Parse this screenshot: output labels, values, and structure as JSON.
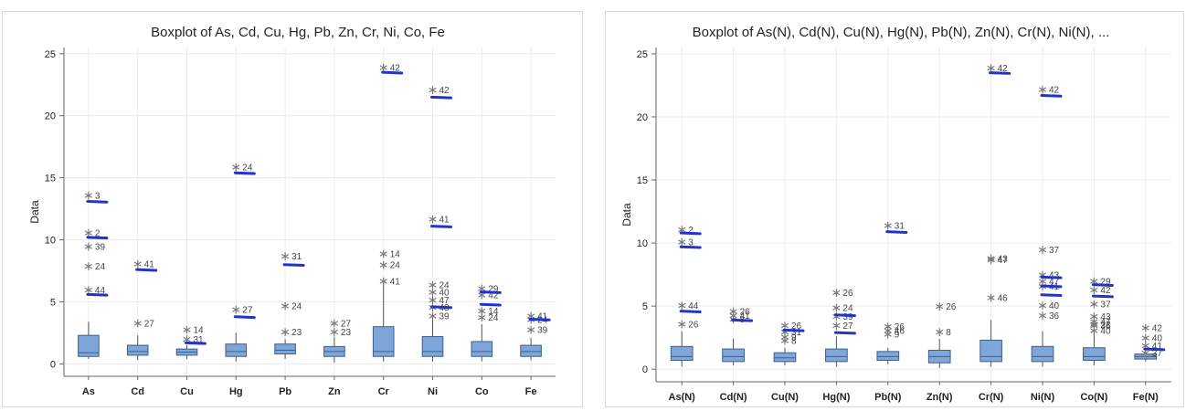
{
  "chart_data": [
    {
      "type": "box",
      "title": "Boxplot of As, Cd, Cu, Hg, Pb, Zn, Cr, Ni, Co, Fe",
      "ylabel": "Data",
      "xlabel": "",
      "ylim": [
        -1,
        25.5
      ],
      "yticks": [
        0,
        5,
        10,
        15,
        20,
        25
      ],
      "grid": true,
      "categories": [
        "As",
        "Cd",
        "Cu",
        "Hg",
        "Pb",
        "Zn",
        "Cr",
        "Ni",
        "Co",
        "Fe"
      ],
      "boxes": [
        {
          "category": "As",
          "whisker_low": 0.4,
          "q1": 0.6,
          "median": 0.9,
          "q3": 2.3,
          "whisker_high": 3.4
        },
        {
          "category": "Cd",
          "whisker_low": 0.3,
          "q1": 0.7,
          "median": 1.0,
          "q3": 1.5,
          "whisker_high": 2.3
        },
        {
          "category": "Cu",
          "whisker_low": 0.4,
          "q1": 0.7,
          "median": 0.95,
          "q3": 1.2,
          "whisker_high": 1.5
        },
        {
          "category": "Hg",
          "whisker_low": 0.2,
          "q1": 0.6,
          "median": 1.0,
          "q3": 1.6,
          "whisker_high": 2.5
        },
        {
          "category": "Pb",
          "whisker_low": 0.4,
          "q1": 0.8,
          "median": 1.1,
          "q3": 1.6,
          "whisker_high": 2.0
        },
        {
          "category": "Zn",
          "whisker_low": 0.1,
          "q1": 0.6,
          "median": 1.0,
          "q3": 1.4,
          "whisker_high": 2.2
        },
        {
          "category": "Cr",
          "whisker_low": 0.2,
          "q1": 0.6,
          "median": 1.0,
          "q3": 3.0,
          "whisker_high": 6.5
        },
        {
          "category": "Ni",
          "whisker_low": 0.2,
          "q1": 0.6,
          "median": 1.0,
          "q3": 2.2,
          "whisker_high": 4.0
        },
        {
          "category": "Co",
          "whisker_low": 0.2,
          "q1": 0.6,
          "median": 1.0,
          "q3": 1.8,
          "whisker_high": 3.2
        },
        {
          "category": "Fe",
          "whisker_low": 0.3,
          "q1": 0.6,
          "median": 1.0,
          "q3": 1.5,
          "whisker_high": 2.1
        }
      ],
      "outliers": [
        {
          "category": "As",
          "value": 13.6,
          "label": "3"
        },
        {
          "category": "As",
          "value": 10.6,
          "label": "2"
        },
        {
          "category": "As",
          "value": 9.5,
          "label": "39"
        },
        {
          "category": "As",
          "value": 7.9,
          "label": "24"
        },
        {
          "category": "As",
          "value": 6.0,
          "label": "44"
        },
        {
          "category": "Cd",
          "value": 8.1,
          "label": "41"
        },
        {
          "category": "Cd",
          "value": 3.3,
          "label": "27"
        },
        {
          "category": "Cu",
          "value": 2.8,
          "label": "14"
        },
        {
          "category": "Cu",
          "value": 2.0,
          "label": "31"
        },
        {
          "category": "Hg",
          "value": 15.9,
          "label": "24"
        },
        {
          "category": "Hg",
          "value": 4.4,
          "label": "27"
        },
        {
          "category": "Pb",
          "value": 8.7,
          "label": "31"
        },
        {
          "category": "Pb",
          "value": 4.7,
          "label": "24"
        },
        {
          "category": "Pb",
          "value": 2.6,
          "label": "23"
        },
        {
          "category": "Zn",
          "value": 3.3,
          "label": "27"
        },
        {
          "category": "Zn",
          "value": 2.6,
          "label": "23"
        },
        {
          "category": "Cr",
          "value": 23.9,
          "label": "42"
        },
        {
          "category": "Cr",
          "value": 8.9,
          "label": "14"
        },
        {
          "category": "Cr",
          "value": 8.0,
          "label": "24"
        },
        {
          "category": "Cr",
          "value": 6.7,
          "label": "41"
        },
        {
          "category": "Ni",
          "value": 22.1,
          "label": "42"
        },
        {
          "category": "Ni",
          "value": 11.7,
          "label": "41"
        },
        {
          "category": "Ni",
          "value": 6.4,
          "label": "24"
        },
        {
          "category": "Ni",
          "value": 5.8,
          "label": "40"
        },
        {
          "category": "Ni",
          "value": 5.2,
          "label": "47"
        },
        {
          "category": "Ni",
          "value": 4.6,
          "label": "43"
        },
        {
          "category": "Ni",
          "value": 3.9,
          "label": "39"
        },
        {
          "category": "Co",
          "value": 6.1,
          "label": "29"
        },
        {
          "category": "Co",
          "value": 5.6,
          "label": "42"
        },
        {
          "category": "Co",
          "value": 4.3,
          "label": "14"
        },
        {
          "category": "Co",
          "value": 3.8,
          "label": "24"
        },
        {
          "category": "Fe",
          "value": 3.9,
          "label": "41"
        },
        {
          "category": "Fe",
          "value": 3.6,
          "label": "24"
        },
        {
          "category": "Fe",
          "value": 2.8,
          "label": "39"
        }
      ],
      "annotation_marks": [
        {
          "category": "As",
          "value": 13.1
        },
        {
          "category": "As",
          "value": 10.2
        },
        {
          "category": "As",
          "value": 5.6
        },
        {
          "category": "Cd",
          "value": 7.6
        },
        {
          "category": "Cu",
          "value": 1.7
        },
        {
          "category": "Hg",
          "value": 15.4
        },
        {
          "category": "Hg",
          "value": 3.8
        },
        {
          "category": "Pb",
          "value": 8.0
        },
        {
          "category": "Cr",
          "value": 23.5
        },
        {
          "category": "Ni",
          "value": 21.5
        },
        {
          "category": "Ni",
          "value": 11.1
        },
        {
          "category": "Ni",
          "value": 4.6
        },
        {
          "category": "Co",
          "value": 5.8
        },
        {
          "category": "Co",
          "value": 4.8
        },
        {
          "category": "Fe",
          "value": 3.6
        }
      ]
    },
    {
      "type": "box",
      "title": "Boxplot of As(N), Cd(N), Cu(N), Hg(N), Pb(N), Zn(N), Cr(N), Ni(N), ...",
      "ylabel": "Data",
      "xlabel": "",
      "ylim": [
        -1,
        25.5
      ],
      "yticks": [
        0,
        5,
        10,
        15,
        20,
        25
      ],
      "grid": true,
      "categories": [
        "As(N)",
        "Cd(N)",
        "Cu(N)",
        "Hg(N)",
        "Pb(N)",
        "Zn(N)",
        "Cr(N)",
        "Ni(N)",
        "Co(N)",
        "Fe(N)"
      ],
      "boxes": [
        {
          "category": "As(N)",
          "whisker_low": 0.2,
          "q1": 0.7,
          "median": 1.0,
          "q3": 1.8,
          "whisker_high": 3.0
        },
        {
          "category": "Cd(N)",
          "whisker_low": 0.3,
          "q1": 0.6,
          "median": 1.0,
          "q3": 1.6,
          "whisker_high": 2.4
        },
        {
          "category": "Cu(N)",
          "whisker_low": 0.3,
          "q1": 0.6,
          "median": 0.9,
          "q3": 1.3,
          "whisker_high": 1.7
        },
        {
          "category": "Hg(N)",
          "whisker_low": 0.2,
          "q1": 0.6,
          "median": 1.0,
          "q3": 1.6,
          "whisker_high": 2.6
        },
        {
          "category": "Pb(N)",
          "whisker_low": 0.4,
          "q1": 0.7,
          "median": 1.0,
          "q3": 1.4,
          "whisker_high": 1.7
        },
        {
          "category": "Zn(N)",
          "whisker_low": 0.1,
          "q1": 0.5,
          "median": 1.0,
          "q3": 1.5,
          "whisker_high": 2.4
        },
        {
          "category": "Cr(N)",
          "whisker_low": 0.2,
          "q1": 0.6,
          "median": 1.0,
          "q3": 2.3,
          "whisker_high": 3.9
        },
        {
          "category": "Ni(N)",
          "whisker_low": 0.2,
          "q1": 0.6,
          "median": 1.0,
          "q3": 1.8,
          "whisker_high": 3.0
        },
        {
          "category": "Co(N)",
          "whisker_low": 0.3,
          "q1": 0.7,
          "median": 1.0,
          "q3": 1.7,
          "whisker_high": 2.8
        },
        {
          "category": "Fe(N)",
          "whisker_low": 0.6,
          "q1": 0.8,
          "median": 1.0,
          "q3": 1.2,
          "whisker_high": 1.4
        }
      ],
      "outliers": [
        {
          "category": "As(N)",
          "value": 11.1,
          "label": "2"
        },
        {
          "category": "As(N)",
          "value": 10.1,
          "label": "3"
        },
        {
          "category": "As(N)",
          "value": 5.1,
          "label": "44"
        },
        {
          "category": "As(N)",
          "value": 3.6,
          "label": "26"
        },
        {
          "category": "Cd(N)",
          "value": 4.6,
          "label": "26"
        },
        {
          "category": "Cd(N)",
          "value": 4.3,
          "label": "41"
        },
        {
          "category": "Cd(N)",
          "value": 4.0,
          "label": "8"
        },
        {
          "category": "Cu(N)",
          "value": 3.5,
          "label": "26"
        },
        {
          "category": "Cu(N)",
          "value": 3.0,
          "label": "31"
        },
        {
          "category": "Cu(N)",
          "value": 2.6,
          "label": "9"
        },
        {
          "category": "Cu(N)",
          "value": 2.3,
          "label": "8"
        },
        {
          "category": "Hg(N)",
          "value": 6.1,
          "label": "26"
        },
        {
          "category": "Hg(N)",
          "value": 4.9,
          "label": "24"
        },
        {
          "category": "Hg(N)",
          "value": 4.2,
          "label": "39"
        },
        {
          "category": "Hg(N)",
          "value": 3.5,
          "label": "27"
        },
        {
          "category": "Pb(N)",
          "value": 11.4,
          "label": "31"
        },
        {
          "category": "Pb(N)",
          "value": 3.4,
          "label": "26"
        },
        {
          "category": "Pb(N)",
          "value": 3.1,
          "label": "46"
        },
        {
          "category": "Pb(N)",
          "value": 2.8,
          "label": "9"
        },
        {
          "category": "Zn(N)",
          "value": 5.0,
          "label": "26"
        },
        {
          "category": "Zn(N)",
          "value": 3.0,
          "label": "8"
        },
        {
          "category": "Cr(N)",
          "value": 23.9,
          "label": "42"
        },
        {
          "category": "Cr(N)",
          "value": 8.8,
          "label": "43"
        },
        {
          "category": "Cr(N)",
          "value": 8.7,
          "label": "47"
        },
        {
          "category": "Cr(N)",
          "value": 5.7,
          "label": "46"
        },
        {
          "category": "Ni(N)",
          "value": 22.2,
          "label": "42"
        },
        {
          "category": "Ni(N)",
          "value": 9.5,
          "label": "37"
        },
        {
          "category": "Ni(N)",
          "value": 7.5,
          "label": "43"
        },
        {
          "category": "Ni(N)",
          "value": 7.0,
          "label": "47"
        },
        {
          "category": "Ni(N)",
          "value": 6.6,
          "label": "41"
        },
        {
          "category": "Ni(N)",
          "value": 5.1,
          "label": "40"
        },
        {
          "category": "Ni(N)",
          "value": 4.3,
          "label": "36"
        },
        {
          "category": "Co(N)",
          "value": 7.0,
          "label": "29"
        },
        {
          "category": "Co(N)",
          "value": 6.3,
          "label": "42"
        },
        {
          "category": "Co(N)",
          "value": 5.2,
          "label": "37"
        },
        {
          "category": "Co(N)",
          "value": 4.2,
          "label": "43"
        },
        {
          "category": "Co(N)",
          "value": 3.8,
          "label": "47"
        },
        {
          "category": "Co(N)",
          "value": 3.6,
          "label": "22"
        },
        {
          "category": "Co(N)",
          "value": 3.5,
          "label": "36"
        },
        {
          "category": "Co(N)",
          "value": 3.1,
          "label": "40"
        },
        {
          "category": "Fe(N)",
          "value": 3.3,
          "label": "42"
        },
        {
          "category": "Fe(N)",
          "value": 2.5,
          "label": "40"
        },
        {
          "category": "Fe(N)",
          "value": 1.9,
          "label": "41"
        },
        {
          "category": "Fe(N)",
          "value": 1.3,
          "label": "37"
        }
      ],
      "annotation_marks": [
        {
          "category": "As(N)",
          "value": 10.8
        },
        {
          "category": "As(N)",
          "value": 9.7
        },
        {
          "category": "As(N)",
          "value": 4.6
        },
        {
          "category": "Cd(N)",
          "value": 3.9
        },
        {
          "category": "Cu(N)",
          "value": 3.1
        },
        {
          "category": "Hg(N)",
          "value": 4.3
        },
        {
          "category": "Hg(N)",
          "value": 2.9
        },
        {
          "category": "Pb(N)",
          "value": 10.9
        },
        {
          "category": "Cr(N)",
          "value": 23.5
        },
        {
          "category": "Ni(N)",
          "value": 21.7
        },
        {
          "category": "Ni(N)",
          "value": 7.3
        },
        {
          "category": "Ni(N)",
          "value": 6.6
        },
        {
          "category": "Ni(N)",
          "value": 5.9
        },
        {
          "category": "Co(N)",
          "value": 6.7
        },
        {
          "category": "Co(N)",
          "value": 5.8
        },
        {
          "category": "Fe(N)",
          "value": 1.6
        }
      ]
    }
  ],
  "colors": {
    "box_fill": "#7ea6d8",
    "box_stroke": "#3f5f8c",
    "whisker": "#555555",
    "outlier": "#777777",
    "annotation_mark": "#2233cc",
    "grid": "#ececec",
    "axis": "#666666"
  }
}
